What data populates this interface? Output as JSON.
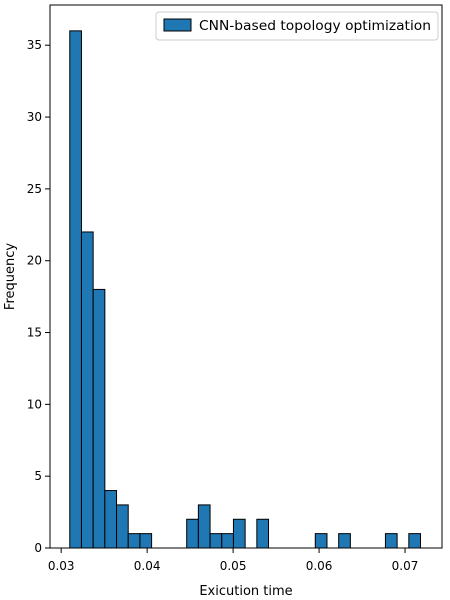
{
  "chart_data": {
    "type": "bar",
    "title": "",
    "xlabel": "Exicution time",
    "ylabel": "Frequency",
    "xlim": [
      0.0287,
      0.0743
    ],
    "ylim": [
      0,
      37.8
    ],
    "x_ticks": [
      {
        "value": 0.03,
        "label": "0.03"
      },
      {
        "value": 0.04,
        "label": "0.04"
      },
      {
        "value": 0.05,
        "label": "0.05"
      },
      {
        "value": 0.06,
        "label": "0.06"
      },
      {
        "value": 0.07,
        "label": "0.07"
      }
    ],
    "y_ticks": [
      {
        "value": 0,
        "label": "0"
      },
      {
        "value": 5,
        "label": "5"
      },
      {
        "value": 10,
        "label": "10"
      },
      {
        "value": 15,
        "label": "15"
      },
      {
        "value": 20,
        "label": "20"
      },
      {
        "value": 25,
        "label": "25"
      },
      {
        "value": 30,
        "label": "30"
      },
      {
        "value": 35,
        "label": "35"
      }
    ],
    "bin_width": 0.00136,
    "series": [
      {
        "name": "CNN-based topology optimization",
        "color": "#1f77b4",
        "edge_color": "#000000",
        "bins": [
          {
            "x_start": 0.031,
            "count": 36
          },
          {
            "x_start": 0.03236,
            "count": 22
          },
          {
            "x_start": 0.03372,
            "count": 18
          },
          {
            "x_start": 0.03508,
            "count": 4
          },
          {
            "x_start": 0.03644,
            "count": 3
          },
          {
            "x_start": 0.0378,
            "count": 1
          },
          {
            "x_start": 0.03916,
            "count": 1
          },
          {
            "x_start": 0.04052,
            "count": 0
          },
          {
            "x_start": 0.04188,
            "count": 0
          },
          {
            "x_start": 0.04324,
            "count": 0
          },
          {
            "x_start": 0.0446,
            "count": 2
          },
          {
            "x_start": 0.04596,
            "count": 3
          },
          {
            "x_start": 0.04732,
            "count": 1
          },
          {
            "x_start": 0.04868,
            "count": 1
          },
          {
            "x_start": 0.05004,
            "count": 2
          },
          {
            "x_start": 0.0514,
            "count": 0
          },
          {
            "x_start": 0.05276,
            "count": 2
          },
          {
            "x_start": 0.05412,
            "count": 0
          },
          {
            "x_start": 0.05548,
            "count": 0
          },
          {
            "x_start": 0.05684,
            "count": 0
          },
          {
            "x_start": 0.0582,
            "count": 0
          },
          {
            "x_start": 0.05956,
            "count": 1
          },
          {
            "x_start": 0.06092,
            "count": 0
          },
          {
            "x_start": 0.06228,
            "count": 1
          },
          {
            "x_start": 0.06364,
            "count": 0
          },
          {
            "x_start": 0.065,
            "count": 0
          },
          {
            "x_start": 0.06636,
            "count": 0
          },
          {
            "x_start": 0.06772,
            "count": 1
          },
          {
            "x_start": 0.06908,
            "count": 0
          },
          {
            "x_start": 0.07044,
            "count": 1
          }
        ]
      }
    ],
    "legend": {
      "placement": "upper right"
    },
    "grid": false
  }
}
